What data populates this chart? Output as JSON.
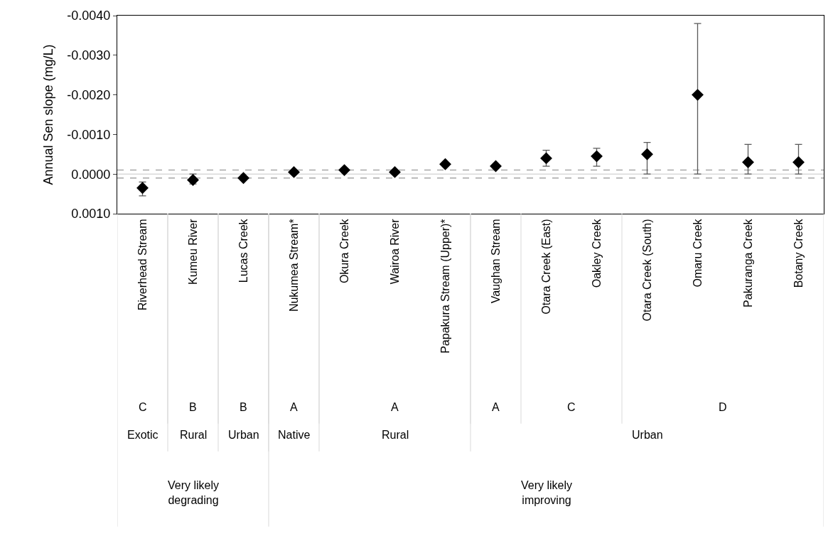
{
  "chart_data": {
    "type": "scatter",
    "ylabel": "Annual Sen slope (mg/L)",
    "categories": [
      "Riverhead Stream",
      "Kumeu River",
      "Lucas Creek",
      "Nukumea Stream*",
      "Okura Creek",
      "Wairoa River",
      "Papakura Stream (Upper)*",
      "Vaughan Stream",
      "Otara Creek (East)",
      "Oakley Creek",
      "Otara Creek (South)",
      "Omaru Creek",
      "Pakuranga Creek",
      "Botany Creek"
    ],
    "series": [
      {
        "color": "#000000",
        "values": [
          0.00035,
          0.00015,
          0.0001,
          -5e-05,
          -0.0001,
          -5e-05,
          -0.00025,
          -0.0002,
          -0.0004,
          -0.00045,
          -0.0005,
          -0.002,
          -0.0003,
          -0.0003
        ],
        "errors": [
          [
            0.0002,
            0.00055
          ],
          [
            0,
            0.00025
          ],
          null,
          null,
          null,
          null,
          null,
          null,
          [
            -0.0006,
            -0.0002
          ],
          [
            -0.00065,
            -0.0002
          ],
          [
            -0.0008,
            0
          ],
          [
            -0.0038,
            0
          ],
          [
            -0.00075,
            0
          ],
          [
            -0.00075,
            0
          ]
        ]
      }
    ],
    "ylim": [
      0.001,
      -0.004
    ],
    "yticks": [
      {
        "value": -0.004,
        "label": "-0.0040"
      },
      {
        "value": -0.003,
        "label": "-0.0030"
      },
      {
        "value": -0.002,
        "label": "-0.0020"
      },
      {
        "value": -0.001,
        "label": "-0.0010"
      },
      {
        "value": 0,
        "label": "0.0000"
      },
      {
        "value": 0.001,
        "label": "0.0010"
      }
    ],
    "ref_lines": [
      {
        "axis": "y",
        "value": -0.0001,
        "color": "#a6a6a6",
        "line_style": "dashed"
      },
      {
        "axis": "y",
        "value": 0.0001,
        "color": "#a6a6a6",
        "line_style": "dashed"
      },
      {
        "axis": "y",
        "value": 0,
        "color": "#d9d9d9",
        "line_style": "solid"
      }
    ],
    "marker": "diamond",
    "grid": false,
    "legend": false,
    "annotations": [
      "C",
      "B",
      "B",
      "A",
      "A",
      "A",
      "C",
      "D",
      "Exotic",
      "Rural",
      "Urban",
      "Native",
      "Rural",
      "Urban",
      "Very likely\ndegrading",
      "Very likely\nimproving"
    ]
  }
}
